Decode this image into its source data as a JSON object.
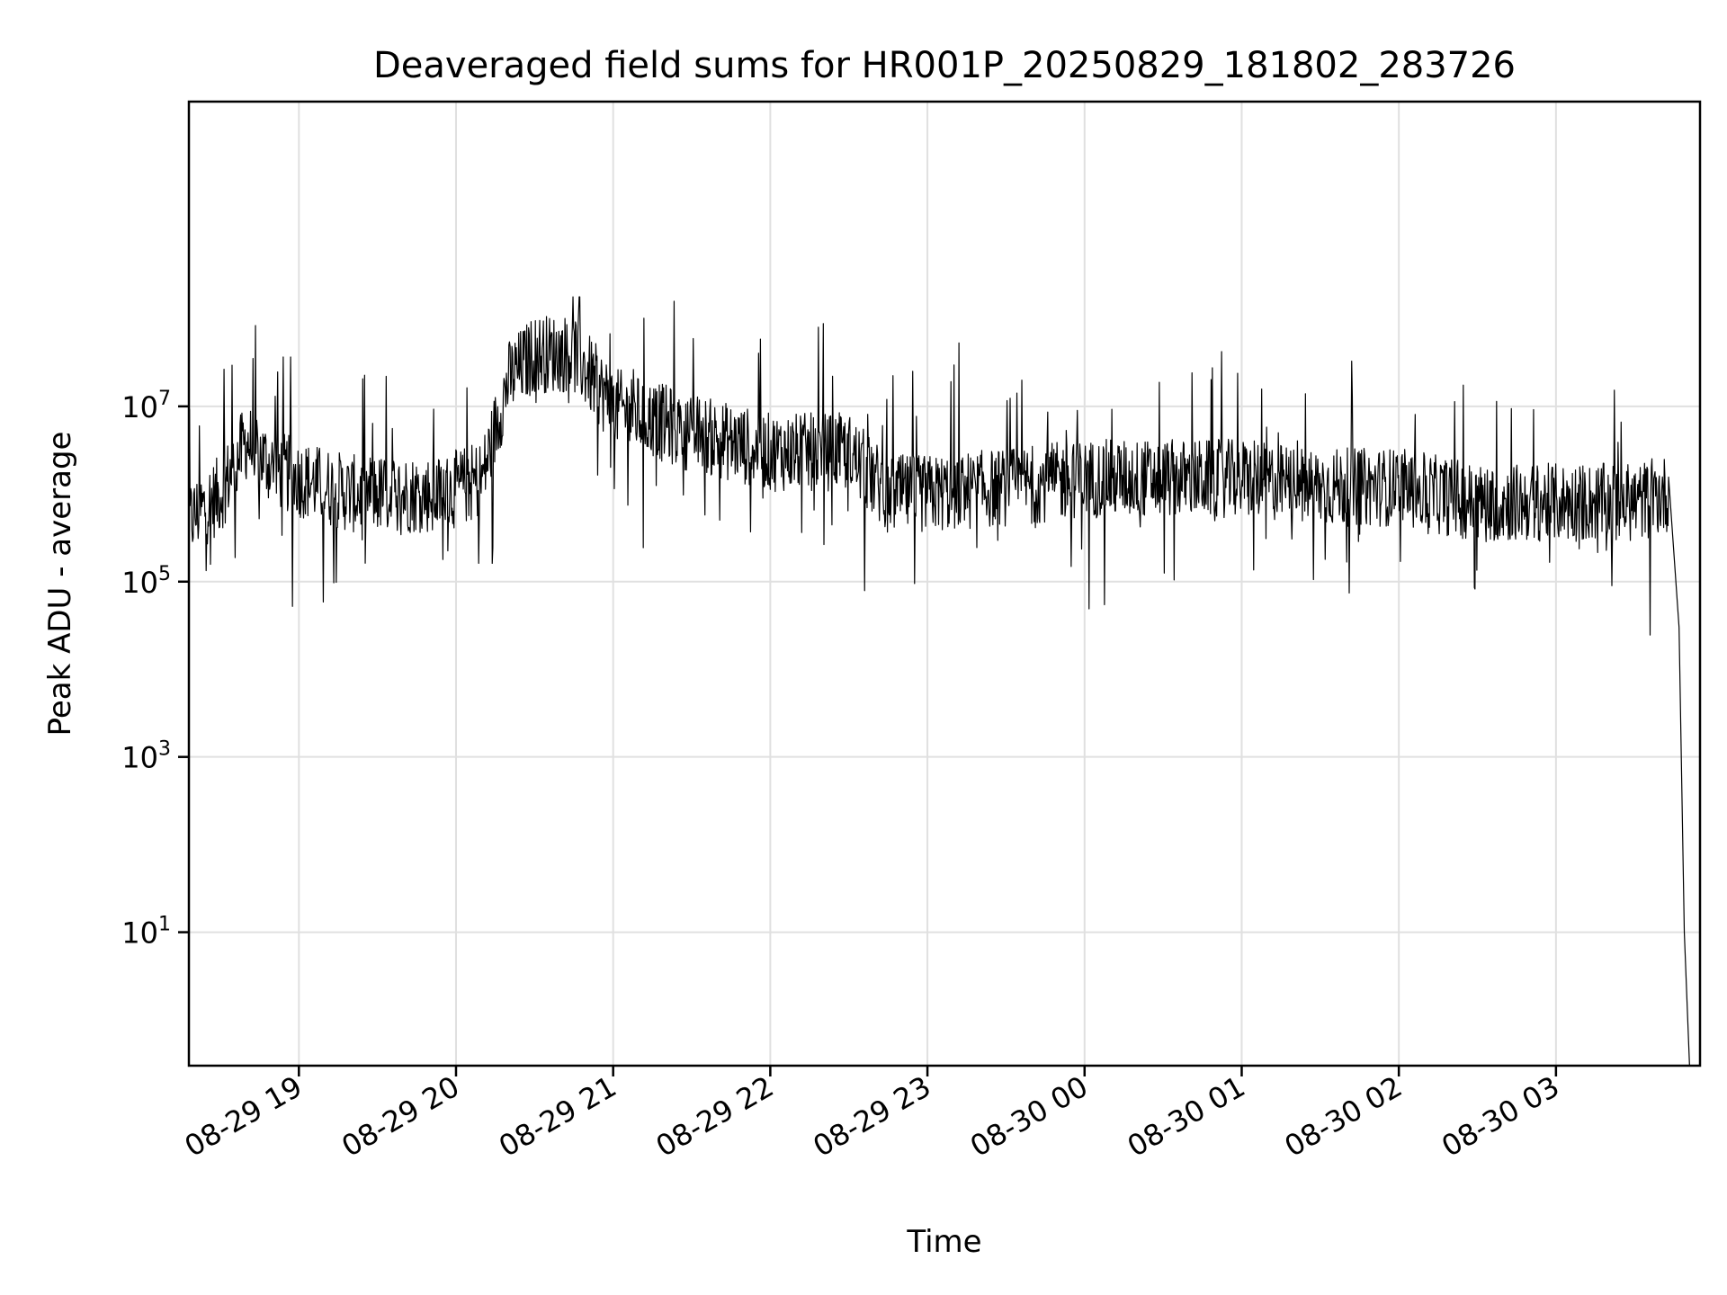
{
  "chart_data": {
    "type": "line",
    "title": "Deaveraged field sums for HR001P_20250829_181802_283726",
    "xlabel": "Time",
    "ylabel": "Peak ADU - average",
    "y_scale": "log",
    "ylim": [
      0.3,
      30000000000
    ],
    "xlim": [
      "2025-08-29 18:18",
      "2025-08-30 03:55"
    ],
    "grid": true,
    "x_ticks": [
      "08-29 19",
      "08-29 20",
      "08-29 21",
      "08-29 22",
      "08-29 23",
      "08-30 00",
      "08-30 01",
      "08-30 02",
      "08-30 03"
    ],
    "y_ticks": [
      {
        "value": 10,
        "base": "10",
        "exp": "1"
      },
      {
        "value": 1000,
        "base": "10",
        "exp": "3"
      },
      {
        "value": 100000,
        "base": "10",
        "exp": "5"
      },
      {
        "value": 10000000,
        "base": "10",
        "exp": "7"
      }
    ],
    "line_color": "#000000",
    "grid_color": "#e0e0e0",
    "series": [
      {
        "x": [
          "2025-08-29 18:18",
          "2025-08-29 18:30",
          "2025-08-29 18:40",
          "2025-08-29 18:50",
          "2025-08-29 19:00",
          "2025-08-29 19:20",
          "2025-08-29 19:40",
          "2025-08-29 19:55",
          "2025-08-29 20:10",
          "2025-08-29 20:20",
          "2025-08-29 20:30",
          "2025-08-29 20:45",
          "2025-08-29 21:00",
          "2025-08-29 21:30",
          "2025-08-29 22:00",
          "2025-08-29 22:30",
          "2025-08-29 22:45",
          "2025-08-29 23:00",
          "2025-08-29 23:30",
          "2025-08-30 00:00",
          "2025-08-30 00:30",
          "2025-08-30 01:00",
          "2025-08-30 01:30",
          "2025-08-30 02:00",
          "2025-08-30 02:30",
          "2025-08-30 03:00",
          "2025-08-30 03:30",
          "2025-08-30 03:43",
          "2025-08-30 03:47",
          "2025-08-30 03:49",
          "2025-08-30 03:51"
        ],
        "y": [
          500000,
          1000000,
          4000000,
          2000000,
          1500000,
          1000000,
          1000000,
          1000000,
          1500000,
          20000000,
          40000000,
          40000000,
          10000000,
          5000000,
          3000000,
          3000000,
          1000000,
          1000000,
          1200000,
          1500000,
          1500000,
          1500000,
          1200000,
          1200000,
          800000,
          800000,
          800000,
          1000000,
          30000,
          10,
          0.3
        ]
      }
    ]
  }
}
